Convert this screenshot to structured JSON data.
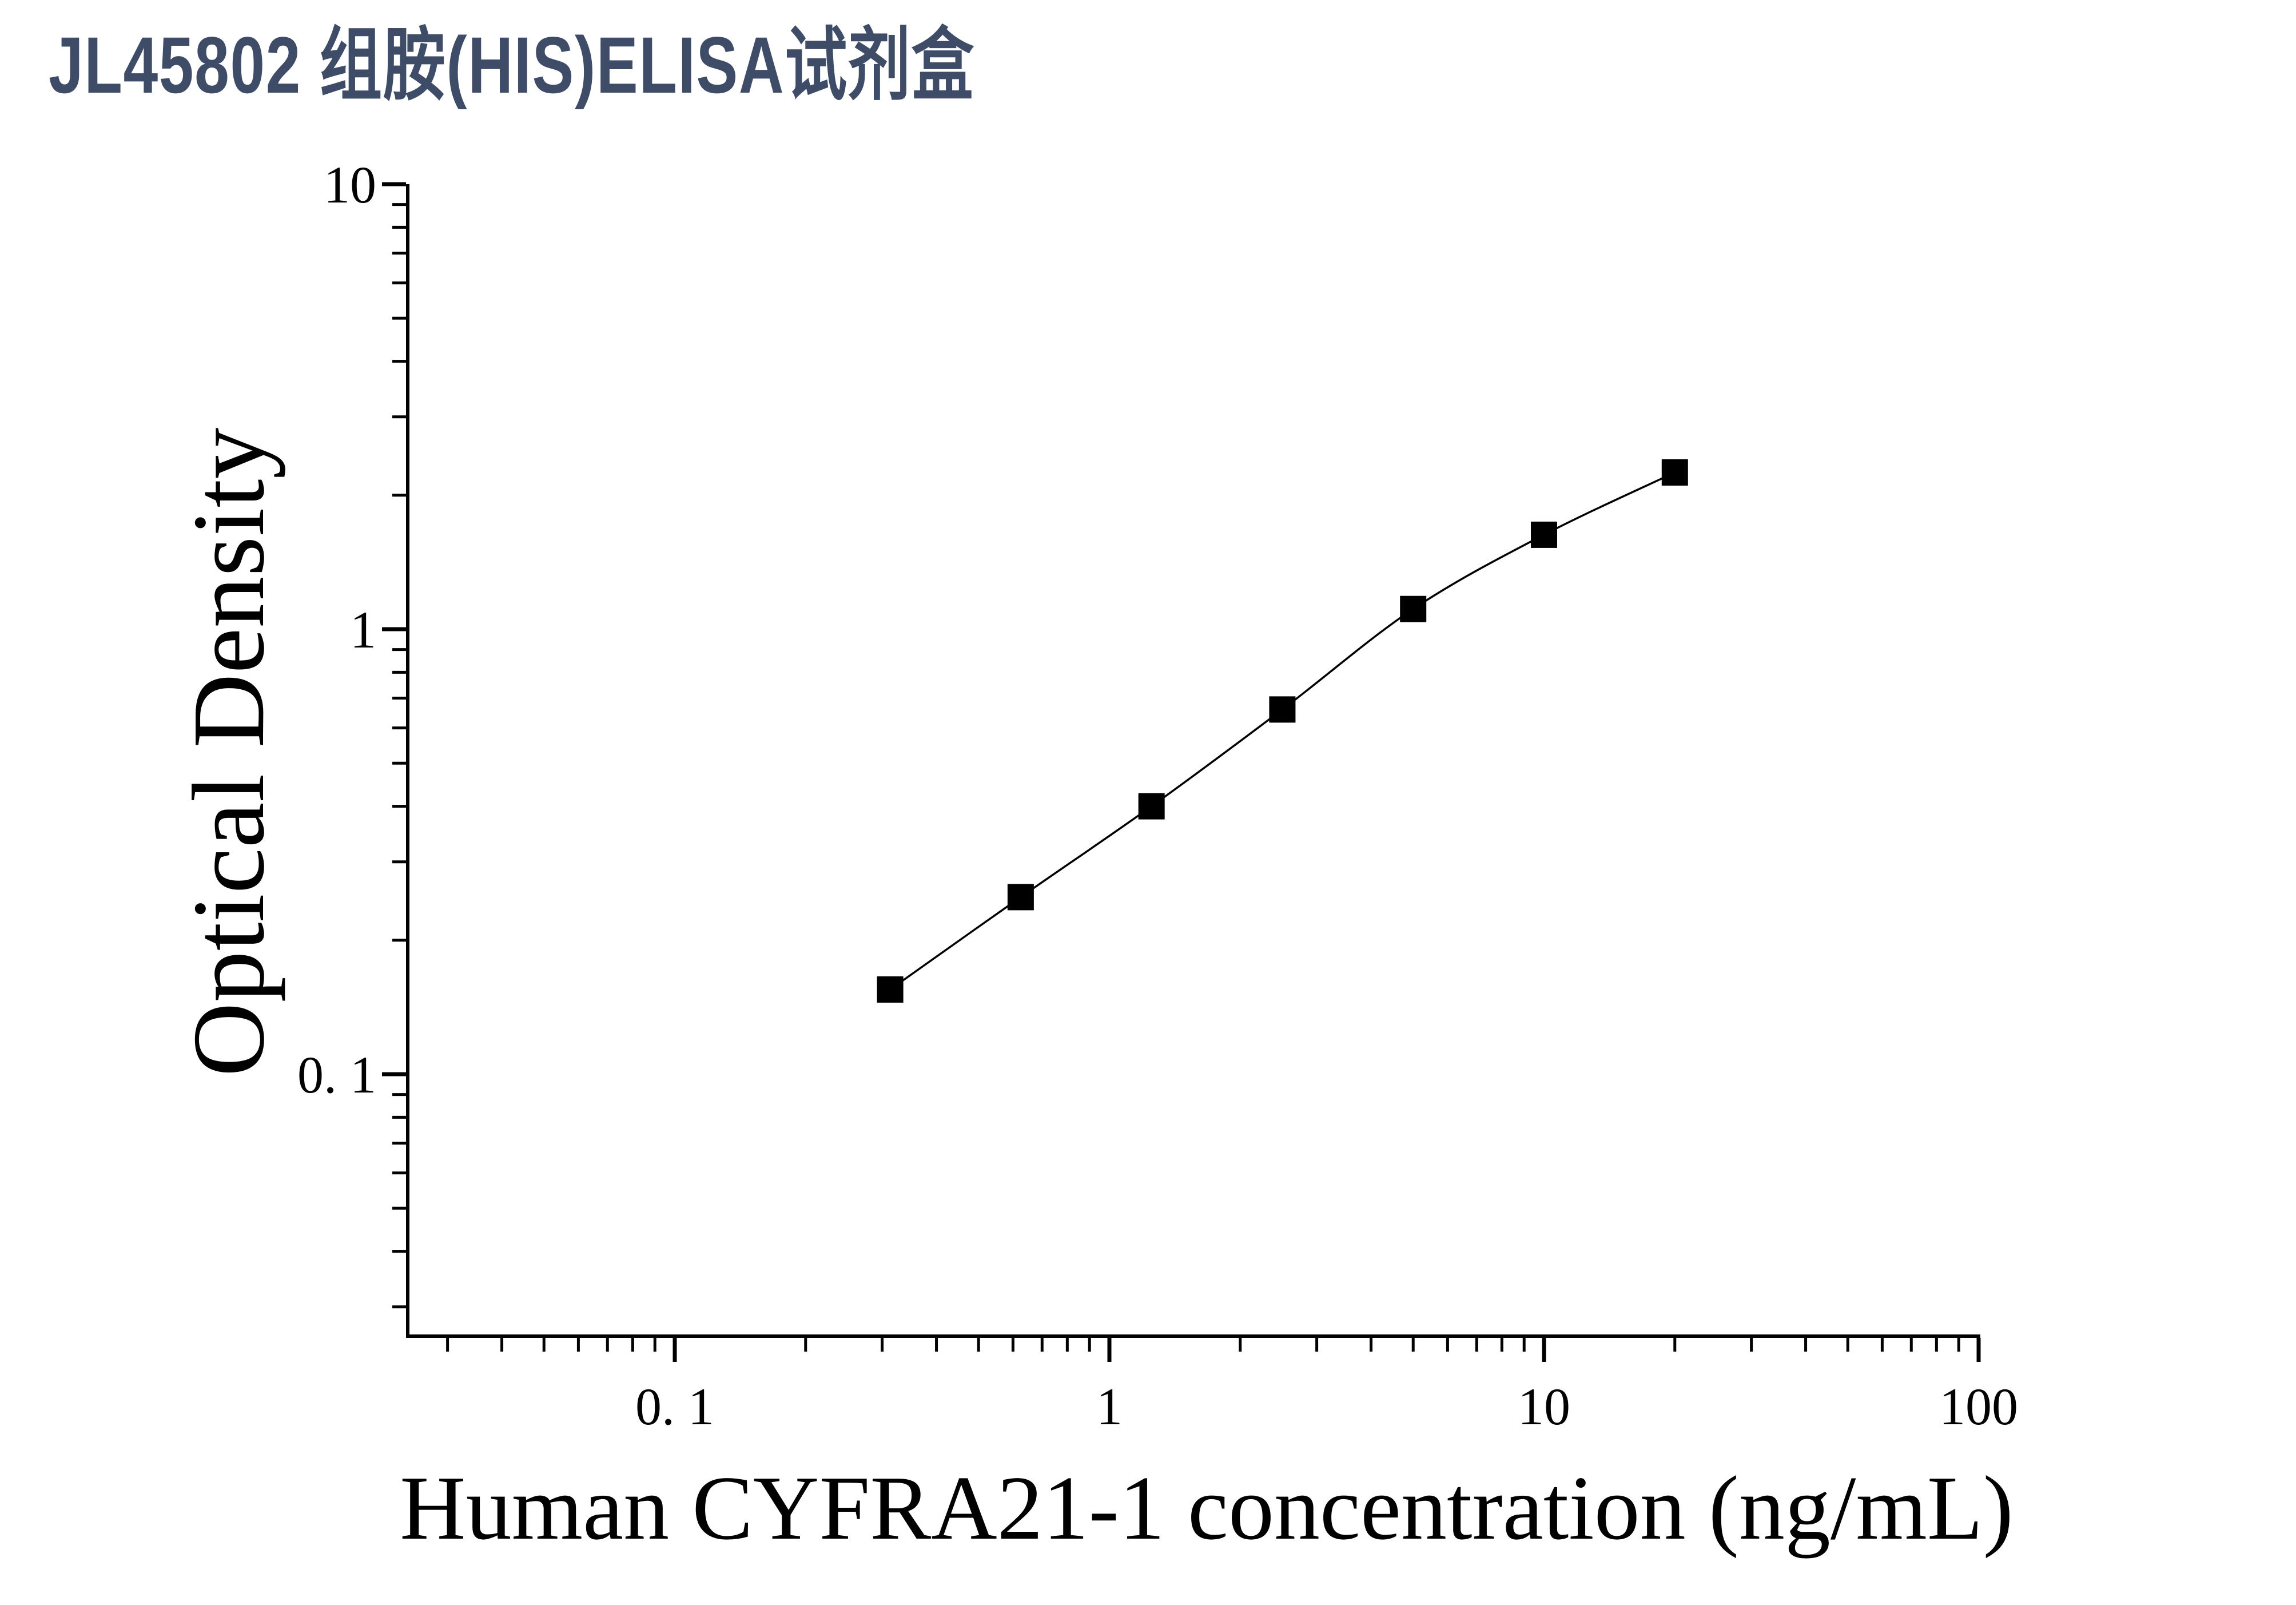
{
  "title": {
    "text": "JL45802 组胺(HIS)ELISA试剂盒",
    "color": "#3f4c68"
  },
  "chart_data": {
    "type": "scatter",
    "x_scale": "log",
    "y_scale": "log",
    "title": "",
    "xlabel": "Human CYFRA21-1 concentration (ng/mL)",
    "ylabel": "Optical Density",
    "xlim": [
      0.024,
      100
    ],
    "ylim": [
      0.026,
      10
    ],
    "x_tick_values": [
      0.1,
      1,
      10,
      100
    ],
    "x_tick_labels": [
      "0. 1",
      "1",
      "10",
      "100"
    ],
    "y_tick_values": [
      10,
      1,
      0.1
    ],
    "y_tick_labels": [
      "10",
      "1",
      "0. 1"
    ],
    "grid": false,
    "legend": false,
    "marker": "filled-square",
    "marker_color": "#000000",
    "line": "smooth",
    "line_color": "#000000",
    "axis_color": "#000000",
    "series": [
      {
        "x": [
          0.313,
          0.625,
          1.25,
          2.5,
          5,
          10,
          20
        ],
        "y": [
          0.155,
          0.25,
          0.4,
          0.66,
          1.11,
          1.63,
          2.25
        ]
      }
    ]
  }
}
